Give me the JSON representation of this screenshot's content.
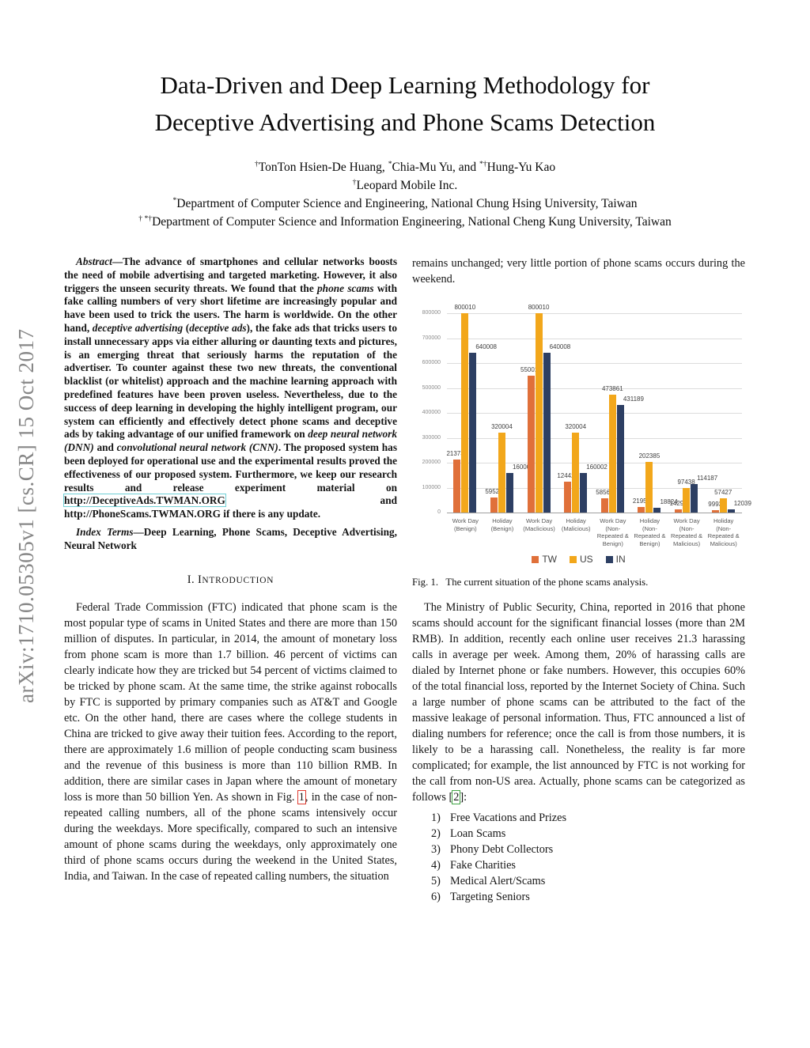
{
  "arxiv_sidebar": "arXiv:1710.05305v1  [cs.CR]  15 Oct 2017",
  "title": {
    "line1": "Data-Driven and Deep Learning Methodology for",
    "line2": "Deceptive Advertising and Phone Scams Detection"
  },
  "authors": {
    "names": [
      {
        "t": "†",
        "s": "sup"
      },
      {
        "t": "TonTon Hsien-De Huang, "
      },
      {
        "t": "*",
        "s": "sup"
      },
      {
        "t": "Chia-Mu Yu, and "
      },
      {
        "t": "*†",
        "s": "sup"
      },
      {
        "t": "Hung-Yu Kao"
      }
    ],
    "affil1": [
      {
        "t": "†",
        "s": "sup"
      },
      {
        "t": "Leopard Mobile Inc."
      }
    ],
    "affil2": [
      {
        "t": "*",
        "s": "sup"
      },
      {
        "t": "Department of Computer Science and Engineering, National Chung Hsing University, Taiwan"
      }
    ],
    "affil3": [
      {
        "t": "† *†",
        "s": "sup"
      },
      {
        "t": "Department of Computer Science and Information Engineering, National Cheng Kung University, Taiwan"
      }
    ]
  },
  "left_column": {
    "abstract": [
      {
        "t": "Abstract",
        "s": "i"
      },
      {
        "t": "—The advance of smartphones and cellular networks boosts the need of mobile advertising and targeted marketing. However, it also triggers the unseen security threats. We found that the "
      },
      {
        "t": "phone scams",
        "s": "i"
      },
      {
        "t": " with fake calling numbers of very short lifetime are increasingly popular and have been used to trick the users. The harm is worldwide. On the other hand, "
      },
      {
        "t": "deceptive advertising",
        "s": "i"
      },
      {
        "t": " ("
      },
      {
        "t": "deceptive ads",
        "s": "i"
      },
      {
        "t": "), the fake ads that tricks users to install unnecessary apps via either alluring or daunting texts and pictures, is an emerging threat that seriously harms the reputation of the advertiser. To counter against these two new threats, the conventional blacklist (or whitelist) approach and the machine learning approach with predefined features have been proven useless. Nevertheless, due to the success of deep learning in developing the highly intelligent program, our system can efficiently and effectively detect phone scams and deceptive ads by taking advantage of our unified framework on "
      },
      {
        "t": "deep neural network (DNN)",
        "s": "i"
      },
      {
        "t": " and "
      },
      {
        "t": "convolutional neural network (CNN)",
        "s": "i"
      },
      {
        "t": ". The proposed system has been deployed for operational use and the experimental results proved the effectiveness of our proposed system. Furthermore, we keep our research results and release experiment material on "
      },
      {
        "t": "http://DeceptiveAds.TWMAN.ORG",
        "s": "link-cyan",
        "name": "deceptiveads-url-link"
      },
      {
        "t": " and http://PhoneScams.TWMAN.ORG if there is any update."
      }
    ],
    "index_terms": [
      {
        "t": "Index Terms",
        "s": "i"
      },
      {
        "t": "—Deep Learning, Phone Scams, Deceptive Advertising, Neural Network"
      }
    ],
    "section_heading": [
      {
        "t": "I. I"
      },
      {
        "t": "NTRODUCTION",
        "s": "sc"
      }
    ],
    "intro_p1": [
      {
        "t": "Federal Trade Commission (FTC) indicated that phone scam is the most popular type of scams in United States and there are more than 150 million of disputes. In particular, in 2014, the amount of monetary loss from phone scam is more than 1.7 billion. 46 percent of victims can clearly indicate how they are tricked but 54 percent of victims claimed to be tricked by phone scam. At the same time, the strike against robocalls by FTC is supported by primary companies such as AT&T and Google etc. On the other hand, there are cases where the college students in China are tricked to give away their tuition fees. According to the report, there are approximately 1.6 million of people conducting scam business and the revenue of this business is more than 110 billion RMB. In addition, there are similar cases in Japan where the amount of monetary loss is more than 50 billion Yen. As shown in Fig. "
      },
      {
        "t": "1",
        "s": "link-red",
        "name": "figure-1-reference"
      },
      {
        "t": ", in the case of non-repeated calling numbers, all of the phone scams intensively occur during the weekdays. More specifically, compared to such an intensive amount of phone scams during the weekdays, only approximately one third of phone scams occurs during the weekend in the United States, India, and Taiwan. In the case of repeated calling numbers, the situation"
      }
    ]
  },
  "right_column": {
    "cont_paragraph": "remains unchanged; very little portion of phone scams occurs during the weekend.",
    "figure_caption": "Fig. 1.   The current situation of the phone scams analysis.",
    "ministry_paragraph": [
      {
        "t": "The Ministry of Public Security, China, reported in 2016 that phone scams should account for the significant financial losses (more than 2M RMB). In addition, recently each online user receives 21.3 harassing calls in average per week. Among them, 20% of harassing calls are dialed by Internet phone or fake numbers. However, this occupies 60% of the total financial loss, reported by the Internet Society of China. Such a large number of phone scams can be attributed to the fact of the massive leakage of personal information. Thus, FTC announced a list of dialing numbers for reference; once the call is from those numbers, it is likely to be a harassing call. Nonetheless, the reality is far more complicated; for example, the list announced by FTC is not working for the call from non-US area. Actually, phone scams can be categorized as follows ["
      },
      {
        "t": "2",
        "s": "link-green",
        "name": "citation-2-link"
      },
      {
        "t": "]:"
      }
    ],
    "scam_list": [
      {
        "num": "1)",
        "label": "Free Vacations and Prizes"
      },
      {
        "num": "2)",
        "label": "Loan Scams"
      },
      {
        "num": "3)",
        "label": "Phony Debt Collectors"
      },
      {
        "num": "4)",
        "label": "Fake Charities"
      },
      {
        "num": "5)",
        "label": "Medical Alert/Scams"
      },
      {
        "num": "6)",
        "label": "Targeting Seniors"
      }
    ]
  },
  "chart_data": {
    "type": "bar",
    "title": "",
    "xlabel": "",
    "ylabel": "",
    "ylim": [
      0,
      800000
    ],
    "yticks": [
      0,
      100000,
      200000,
      300000,
      400000,
      500000,
      600000,
      700000,
      800000
    ],
    "grid": true,
    "legend_position": "bottom",
    "categories": [
      "Work Day (Benign)",
      "Holiday (Benign)",
      "Work Day (Maclicious)",
      "Holiday (Malicious)",
      "Work Day (Non-Repeated & Benign)",
      "Holiday (Non-Repeated & Benign)",
      "Work Day (Non-Repeated & Malicious)",
      "Holiday (Non-Repeated & Malicious)"
    ],
    "series": [
      {
        "name": "TW",
        "color": "#E0703A",
        "values": [
          213733,
          59521,
          550011,
          124422,
          58562,
          21951,
          14294,
          9993
        ]
      },
      {
        "name": "US",
        "color": "#F2A71B",
        "values": [
          800010,
          320004,
          800010,
          320004,
          473861,
          202385,
          97438,
          57427
        ]
      },
      {
        "name": "IN",
        "color": "#2D3F63",
        "values": [
          640008,
          160002,
          640008,
          160002,
          431189,
          18824,
          114187,
          12039
        ]
      }
    ]
  }
}
